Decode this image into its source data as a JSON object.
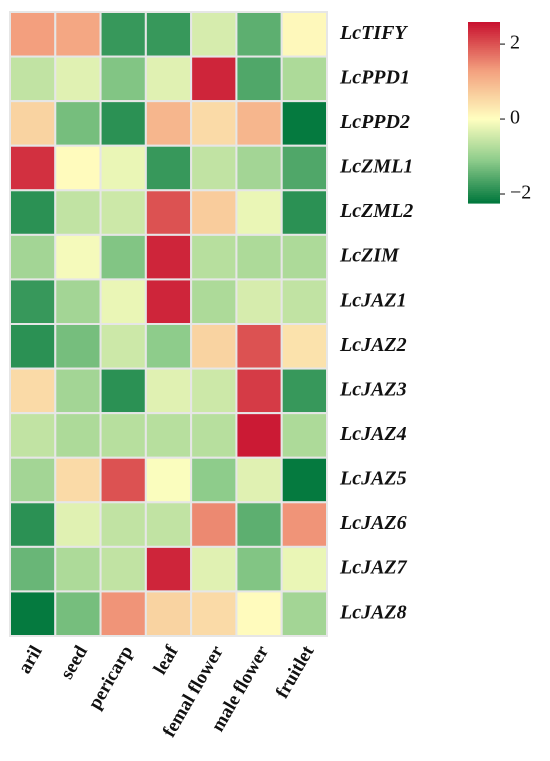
{
  "chart_data": {
    "type": "heatmap",
    "x_categories": [
      "aril",
      "seed",
      "pericarp",
      "leaf",
      "femal flower",
      "male flower",
      "fruitlet"
    ],
    "y_categories": [
      "LcTIFY",
      "LcPPD1",
      "LcPPD2",
      "LcZML1",
      "LcZML2",
      "LcZIM",
      "LcJAZ1",
      "LcJAZ2",
      "LcJAZ3",
      "LcJAZ4",
      "LcJAZ5",
      "LcJAZ6",
      "LcJAZ7",
      "LcJAZ8"
    ],
    "values": [
      [
        1.3,
        1.2,
        -1.8,
        -1.8,
        -0.4,
        -1.5,
        0.1
      ],
      [
        -0.6,
        -0.3,
        -1.2,
        -0.3,
        2.4,
        -1.6,
        -0.8
      ],
      [
        0.6,
        -1.3,
        -1.9,
        1.0,
        0.5,
        1.0,
        -2.2
      ],
      [
        2.3,
        0.05,
        -0.2,
        -1.8,
        -0.6,
        -0.9,
        -1.6
      ],
      [
        -1.9,
        -0.6,
        -0.5,
        2.0,
        0.7,
        -0.2,
        -1.9
      ],
      [
        -0.9,
        -0.1,
        -1.2,
        2.4,
        -0.7,
        -0.8,
        -0.8
      ],
      [
        -1.8,
        -0.9,
        -0.2,
        2.4,
        -0.8,
        -0.4,
        -0.6
      ],
      [
        -1.9,
        -1.3,
        -0.5,
        -1.1,
        0.6,
        2.0,
        0.4
      ],
      [
        0.5,
        -0.9,
        -1.9,
        -0.3,
        -0.5,
        2.2,
        -1.8
      ],
      [
        -0.6,
        -0.8,
        -0.7,
        -0.7,
        -0.7,
        2.5,
        -0.8
      ],
      [
        -0.9,
        0.5,
        2.0,
        -0.05,
        -1.1,
        -0.3,
        -2.2
      ],
      [
        -1.9,
        -0.3,
        -0.6,
        -0.6,
        1.5,
        -1.5,
        1.4
      ],
      [
        -1.4,
        -0.8,
        -0.6,
        2.4,
        -0.3,
        -1.2,
        -0.2
      ],
      [
        -2.2,
        -1.3,
        1.4,
        0.6,
        0.5,
        0.05,
        -0.9
      ]
    ],
    "colormap": [
      "#00773c",
      "#8ccb8a",
      "#ffffc0",
      "#f3a07e",
      "#c8102e"
    ],
    "clim": [
      -2.24,
      2.59
    ],
    "cticks": [
      2,
      0,
      {
        "value": -2,
        "label": "−2"
      }
    ]
  }
}
